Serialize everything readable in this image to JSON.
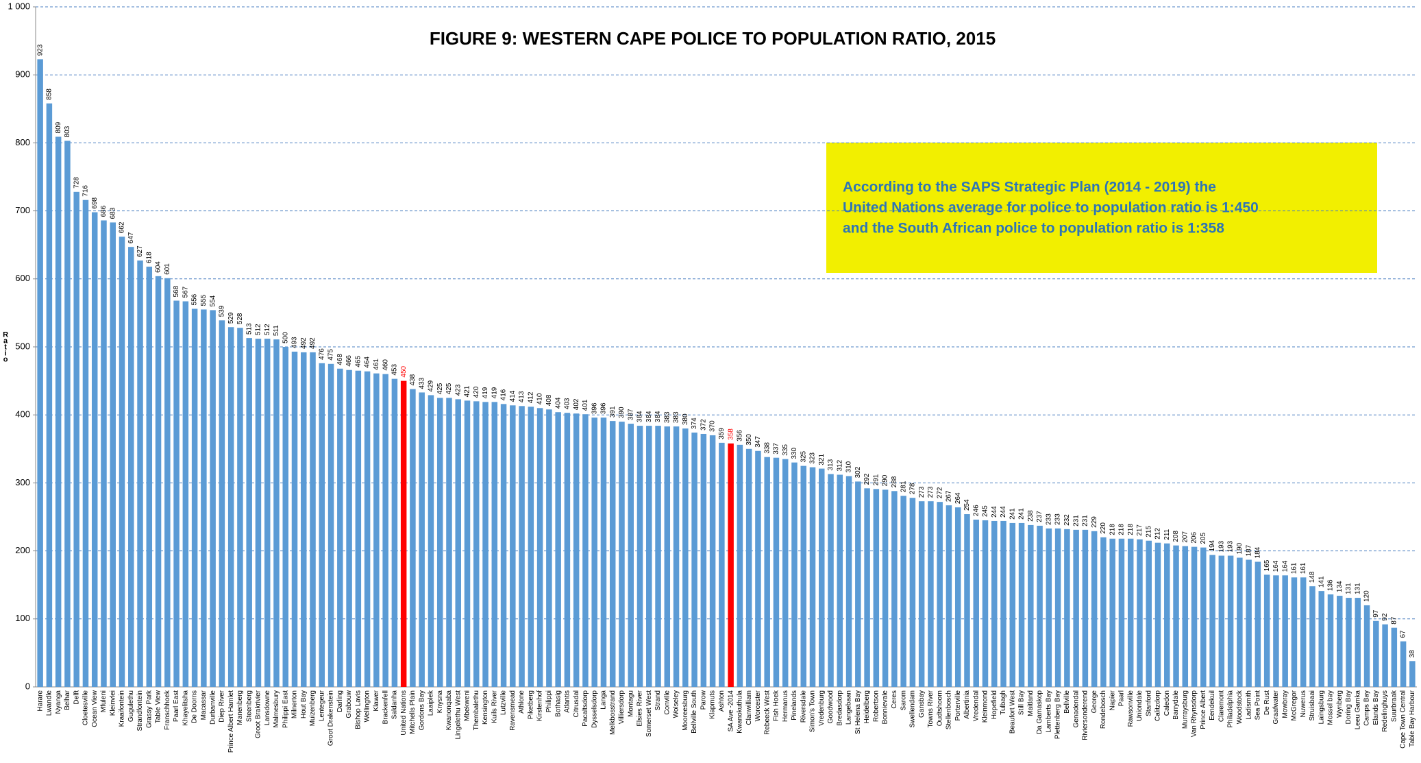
{
  "chart_data": {
    "type": "bar",
    "title": "FIGURE 9:  WESTERN CAPE POLICE TO POPULATION RATIO,  2015",
    "y_label": "Ratio",
    "annotation": [
      "According to the SAPS Strategic Plan (2014 - 2019) the",
      "United  Nations average for police to population ratio is 1:450",
      "and the South African police to population ratio is 1:358"
    ],
    "categories": [
      "Harare",
      "Lwandle",
      "Nyanga",
      "Belhar",
      "Delft",
      "Cloetesville",
      "Ocean View",
      "Mfuleni",
      "Kleinvlei",
      "Kraaifontein",
      "Gugulethu",
      "Strandfontein",
      "Grassy Park",
      "Table View",
      "Franschhoek",
      "Paarl East",
      "Khayelitsha",
      "De Doorns",
      "Macassar",
      "Durbanville",
      "Diep River",
      "Prince Albert Hamlet",
      "Manenberg",
      "Steenberg",
      "Groot Brakrivier",
      "Lansdowne",
      "Malmesbury",
      "Philippi East",
      "Milnerton",
      "Hout Bay",
      "Muizenberg",
      "Lentegeur",
      "Groot Drakenstein",
      "Darling",
      "Grabouw",
      "Bishop Lavis",
      "Wellington",
      "Klawer",
      "Brackenfell",
      "Saldanha",
      "United Nations",
      "Mitchells Plain",
      "Gordons Bay",
      "Laaiplek",
      "Knysna",
      "Kwanonqaba",
      "Lingelethu West",
      "Mbekweni",
      "Thembalethu",
      "Kensington",
      "Kuils River",
      "Lutzville",
      "Ravensmead",
      "Athlone",
      "Piketberg",
      "Kirstenhof",
      "Philippi",
      "Bothasig",
      "Atlantis",
      "Citrusdal",
      "Pacaltsdorp",
      "Dysselsdorp",
      "Langa",
      "Melkbosstrand",
      "Villiersdorp",
      "Montagu",
      "Elsies River",
      "Somerset West",
      "Strand",
      "Conville",
      "Wolseley",
      "Mooreesburg",
      "Bellville South",
      "Parow",
      "Klapmuts",
      "Ashton",
      "SA Ave -2014",
      "Kwanokuthula",
      "Clanwilliam",
      "Worcester",
      "Rebeeck West",
      "Fish Hoek",
      "Hermanus",
      "Pinelands",
      "Riversdale",
      "Simon's Town",
      "Vredenburg",
      "Goodwood",
      "Bredasdorp",
      "Langebaan",
      "St Helena Bay",
      "Heidelberg",
      "Robertson",
      "Bonnievale",
      "Ceres",
      "Sarom",
      "Swellendam",
      "Gansbay",
      "Towns River",
      "Oudtshoorn",
      "Stellenbosch",
      "Porterville",
      "Albertinia",
      "Vredendal",
      "Kleinmond",
      "Hopefield",
      "Tulbagh",
      "Beaufort West",
      "Still Bay",
      "Maitland",
      "Da Gamaskop",
      "Lamberts Bay",
      "Plettenberg Bay",
      "Bellville",
      "Genadendal",
      "Riviersonderend",
      "George",
      "Rondebosch",
      "Napier",
      "Paarl",
      "Rawsonville",
      "Uniondale",
      "Stanford",
      "Calitzdorp",
      "Caledon",
      "Barrydale",
      "Murraysburg",
      "Van Rhynsdorp",
      "Prince Albert",
      "Eendekuil",
      "Claremont",
      "Philadelphia",
      "Woodstock",
      "Ladismith",
      "Sea Point",
      "De Rust",
      "Graafwater",
      "Mowbray",
      "McGregor",
      "Nuwerus",
      "Struisbaai",
      "Laingsburg",
      "Mossel bay",
      "Wynberg",
      "Doring Bay",
      "Leeu Gamka",
      "Camps Bay",
      "Elands Bay",
      "Redelinghuys",
      "Suurbraak",
      "Cape Town Central",
      "Table Bay Harbour"
    ],
    "values": [
      923,
      858,
      809,
      803,
      728,
      716,
      698,
      686,
      683,
      662,
      647,
      627,
      618,
      604,
      601,
      568,
      567,
      556,
      555,
      554,
      539,
      529,
      528,
      513,
      512,
      512,
      511,
      500,
      493,
      492,
      492,
      476,
      475,
      468,
      466,
      465,
      464,
      461,
      460,
      453,
      450,
      438,
      433,
      429,
      425,
      425,
      423,
      421,
      420,
      419,
      419,
      416,
      414,
      413,
      412,
      410,
      408,
      404,
      403,
      402,
      401,
      396,
      396,
      391,
      390,
      387,
      384,
      384,
      384,
      383,
      383,
      380,
      374,
      372,
      370,
      359,
      358,
      356,
      350,
      347,
      338,
      337,
      335,
      330,
      325,
      323,
      321,
      313,
      312,
      310,
      302,
      292,
      291,
      290,
      288,
      281,
      278,
      273,
      273,
      272,
      267,
      264,
      254,
      246,
      245,
      244,
      244,
      241,
      241,
      238,
      237,
      233,
      233,
      232,
      231,
      231,
      229,
      220,
      218,
      218,
      218,
      217,
      215,
      212,
      211,
      208,
      207,
      206,
      205,
      194,
      193,
      193,
      190,
      187,
      184,
      165,
      164,
      164,
      161,
      161,
      148,
      141,
      136,
      134,
      131,
      131,
      120,
      97,
      92,
      87,
      67,
      38
    ],
    "color": "#5b9bd5",
    "highlight_color": "#ff0000",
    "highlight": [
      "United Nations",
      "SA Ave -2014"
    ],
    "ylim": [
      0,
      1000
    ],
    "yticks": [
      0,
      100,
      200,
      300,
      400,
      500,
      600,
      700,
      800,
      900,
      {
        "value": 1000,
        "label": "1 000"
      }
    ],
    "grid": true
  }
}
